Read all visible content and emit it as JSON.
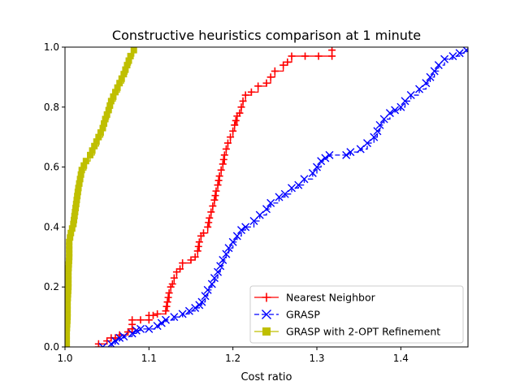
{
  "chart_data": {
    "type": "line",
    "title": "Constructive heuristics comparison at 1 minute",
    "xlabel": "Cost ratio",
    "ylabel": "",
    "xlim": [
      1.0,
      1.48
    ],
    "ylim": [
      0.0,
      1.0
    ],
    "xticks": [
      "1.0",
      "1.1",
      "1.2",
      "1.3",
      "1.4"
    ],
    "xtick_values": [
      1.0,
      1.1,
      1.2,
      1.3,
      1.4
    ],
    "yticks": [
      "0.0",
      "0.2",
      "0.4",
      "0.6",
      "0.8",
      "1.0"
    ],
    "ytick_values": [
      0.0,
      0.2,
      0.4,
      0.6,
      0.8,
      1.0
    ],
    "grid": false,
    "legend_position": "lower-right",
    "series": [
      {
        "name": "Nearest Neighbor",
        "color": "#ff0000",
        "marker": "plus",
        "linestyle": "solid",
        "points": [
          [
            1.04,
            0.0
          ],
          [
            1.04,
            0.01
          ],
          [
            1.05,
            0.02
          ],
          [
            1.055,
            0.03
          ],
          [
            1.06,
            0.03
          ],
          [
            1.065,
            0.04
          ],
          [
            1.075,
            0.05
          ],
          [
            1.08,
            0.06
          ],
          [
            1.08,
            0.09
          ],
          [
            1.09,
            0.09
          ],
          [
            1.1,
            0.09
          ],
          [
            1.1,
            0.105
          ],
          [
            1.105,
            0.105
          ],
          [
            1.11,
            0.11
          ],
          [
            1.12,
            0.12
          ],
          [
            1.122,
            0.15
          ],
          [
            1.124,
            0.18
          ],
          [
            1.126,
            0.2
          ],
          [
            1.128,
            0.21
          ],
          [
            1.13,
            0.23
          ],
          [
            1.133,
            0.25
          ],
          [
            1.137,
            0.26
          ],
          [
            1.14,
            0.28
          ],
          [
            1.15,
            0.29
          ],
          [
            1.155,
            0.3
          ],
          [
            1.158,
            0.32
          ],
          [
            1.16,
            0.35
          ],
          [
            1.162,
            0.37
          ],
          [
            1.165,
            0.38
          ],
          [
            1.17,
            0.4
          ],
          [
            1.172,
            0.43
          ],
          [
            1.174,
            0.45
          ],
          [
            1.176,
            0.47
          ],
          [
            1.178,
            0.49
          ],
          [
            1.18,
            0.52
          ],
          [
            1.182,
            0.54
          ],
          [
            1.184,
            0.57
          ],
          [
            1.186,
            0.59
          ],
          [
            1.188,
            0.61
          ],
          [
            1.19,
            0.64
          ],
          [
            1.192,
            0.66
          ],
          [
            1.194,
            0.68
          ],
          [
            1.197,
            0.7
          ],
          [
            1.2,
            0.72
          ],
          [
            1.202,
            0.74
          ],
          [
            1.205,
            0.77
          ],
          [
            1.208,
            0.78
          ],
          [
            1.21,
            0.8
          ],
          [
            1.212,
            0.82
          ],
          [
            1.215,
            0.84
          ],
          [
            1.222,
            0.85
          ],
          [
            1.23,
            0.87
          ],
          [
            1.24,
            0.88
          ],
          [
            1.245,
            0.9
          ],
          [
            1.25,
            0.92
          ],
          [
            1.26,
            0.94
          ],
          [
            1.265,
            0.95
          ],
          [
            1.27,
            0.97
          ],
          [
            1.318,
            0.97
          ],
          [
            1.318,
            0.99
          ]
        ]
      },
      {
        "name": "GRASP",
        "color": "#0000ff",
        "marker": "x",
        "linestyle": "dashed",
        "points": [
          [
            1.045,
            0.0
          ],
          [
            1.055,
            0.01
          ],
          [
            1.06,
            0.02
          ],
          [
            1.065,
            0.03
          ],
          [
            1.07,
            0.035
          ],
          [
            1.08,
            0.045
          ],
          [
            1.085,
            0.055
          ],
          [
            1.09,
            0.06
          ],
          [
            1.1,
            0.06
          ],
          [
            1.11,
            0.07
          ],
          [
            1.115,
            0.08
          ],
          [
            1.12,
            0.09
          ],
          [
            1.13,
            0.1
          ],
          [
            1.14,
            0.11
          ],
          [
            1.148,
            0.12
          ],
          [
            1.155,
            0.13
          ],
          [
            1.16,
            0.14
          ],
          [
            1.163,
            0.15
          ],
          [
            1.167,
            0.17
          ],
          [
            1.17,
            0.19
          ],
          [
            1.175,
            0.21
          ],
          [
            1.178,
            0.23
          ],
          [
            1.182,
            0.25
          ],
          [
            1.185,
            0.27
          ],
          [
            1.188,
            0.29
          ],
          [
            1.192,
            0.31
          ],
          [
            1.195,
            0.33
          ],
          [
            1.2,
            0.35
          ],
          [
            1.205,
            0.37
          ],
          [
            1.21,
            0.39
          ],
          [
            1.215,
            0.4
          ],
          [
            1.225,
            0.42
          ],
          [
            1.232,
            0.44
          ],
          [
            1.24,
            0.46
          ],
          [
            1.245,
            0.48
          ],
          [
            1.255,
            0.5
          ],
          [
            1.262,
            0.51
          ],
          [
            1.27,
            0.53
          ],
          [
            1.278,
            0.54
          ],
          [
            1.285,
            0.56
          ],
          [
            1.295,
            0.58
          ],
          [
            1.3,
            0.6
          ],
          [
            1.305,
            0.62
          ],
          [
            1.31,
            0.63
          ],
          [
            1.315,
            0.64
          ],
          [
            1.335,
            0.64
          ],
          [
            1.34,
            0.65
          ],
          [
            1.352,
            0.66
          ],
          [
            1.36,
            0.68
          ],
          [
            1.368,
            0.7
          ],
          [
            1.372,
            0.72
          ],
          [
            1.375,
            0.74
          ],
          [
            1.38,
            0.76
          ],
          [
            1.387,
            0.78
          ],
          [
            1.393,
            0.79
          ],
          [
            1.4,
            0.8
          ],
          [
            1.405,
            0.82
          ],
          [
            1.412,
            0.84
          ],
          [
            1.422,
            0.86
          ],
          [
            1.43,
            0.88
          ],
          [
            1.435,
            0.9
          ],
          [
            1.44,
            0.92
          ],
          [
            1.445,
            0.94
          ],
          [
            1.452,
            0.96
          ],
          [
            1.462,
            0.97
          ],
          [
            1.47,
            0.98
          ],
          [
            1.478,
            0.99
          ]
        ]
      },
      {
        "name": "GRASP with 2-OPT Refinement",
        "color": "#bfbf00",
        "marker": "square",
        "linestyle": "solid",
        "points": [
          [
            1.002,
            0.0
          ],
          [
            1.002,
            0.05
          ],
          [
            1.003,
            0.1
          ],
          [
            1.003,
            0.15
          ],
          [
            1.004,
            0.2
          ],
          [
            1.004,
            0.25
          ],
          [
            1.005,
            0.3
          ],
          [
            1.005,
            0.35
          ],
          [
            1.007,
            0.38
          ],
          [
            1.01,
            0.41
          ],
          [
            1.012,
            0.45
          ],
          [
            1.014,
            0.49
          ],
          [
            1.016,
            0.53
          ],
          [
            1.018,
            0.56
          ],
          [
            1.02,
            0.59
          ],
          [
            1.025,
            0.62
          ],
          [
            1.03,
            0.64
          ],
          [
            1.035,
            0.67
          ],
          [
            1.04,
            0.7
          ],
          [
            1.045,
            0.73
          ],
          [
            1.048,
            0.76
          ],
          [
            1.052,
            0.79
          ],
          [
            1.055,
            0.82
          ],
          [
            1.06,
            0.85
          ],
          [
            1.065,
            0.88
          ],
          [
            1.07,
            0.91
          ],
          [
            1.074,
            0.94
          ],
          [
            1.078,
            0.97
          ],
          [
            1.082,
            0.99
          ]
        ]
      }
    ]
  }
}
